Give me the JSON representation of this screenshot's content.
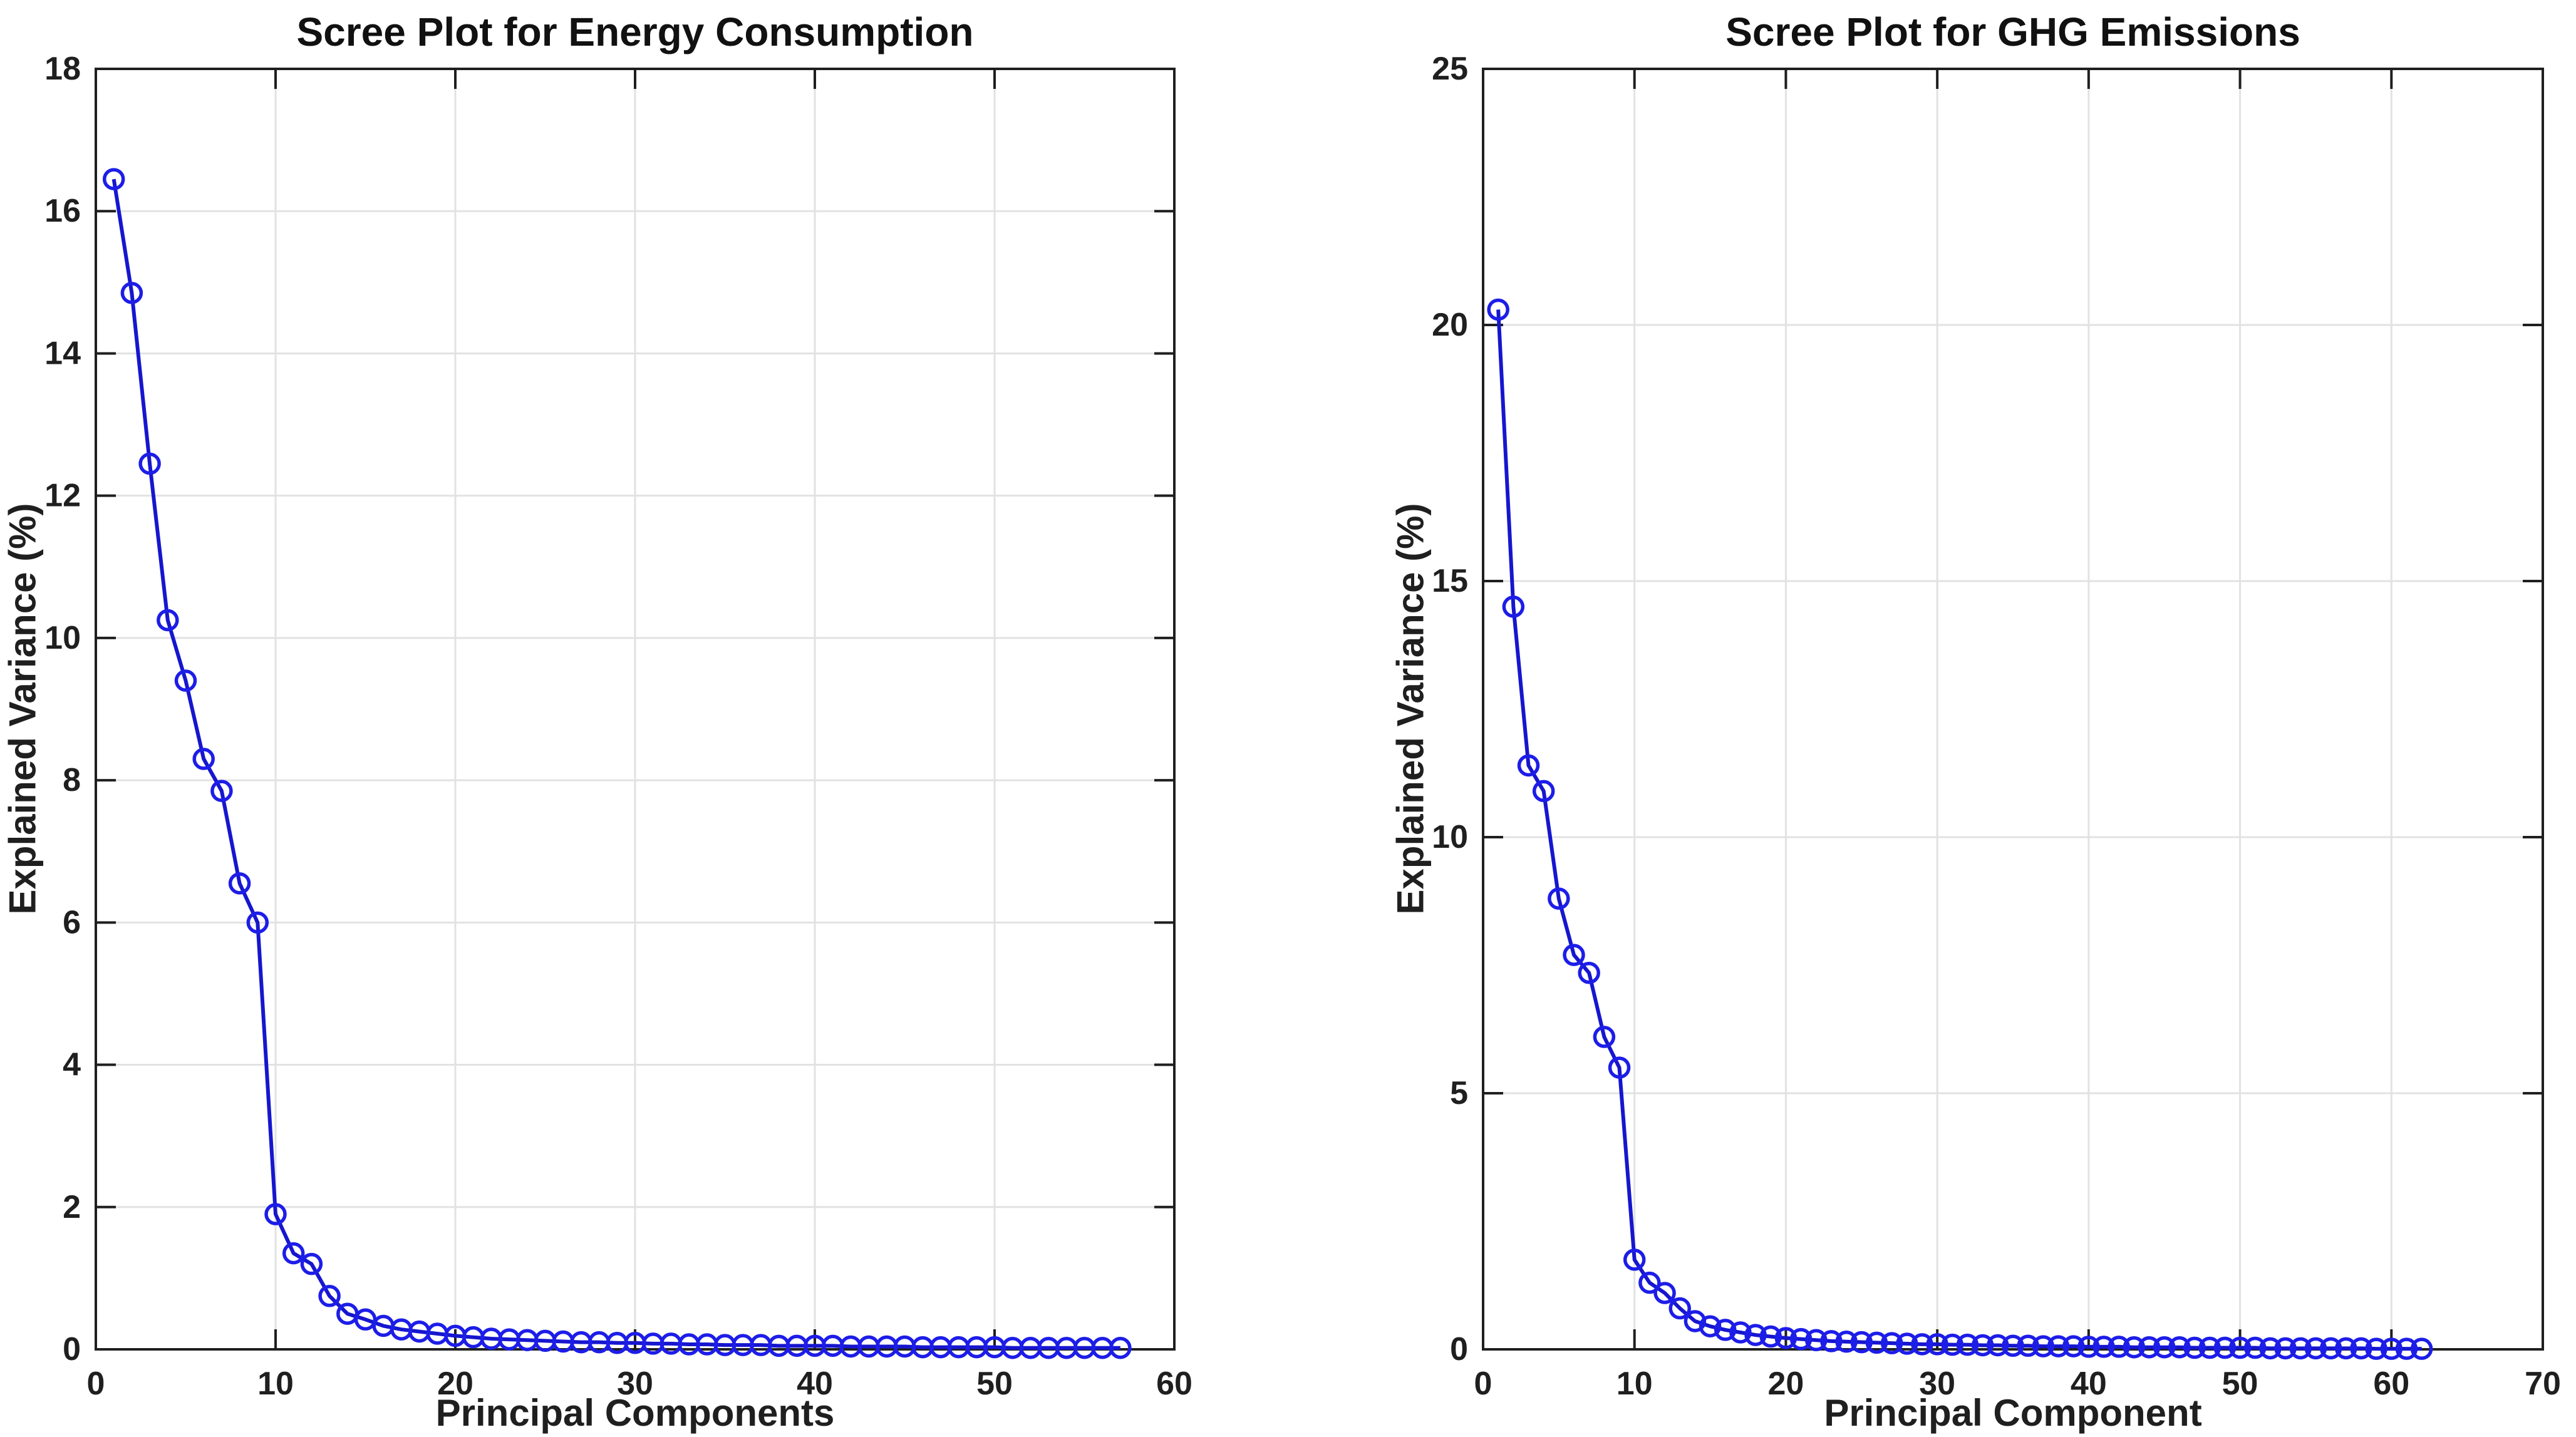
{
  "figure": {
    "background": "#ffffff",
    "axis_color": "#1f1f1f",
    "grid_color": "#e2e2e2",
    "series_line_color": "#1616cf",
    "series_marker_color": "#1d1de8"
  },
  "chart_data": [
    {
      "type": "line",
      "title": "Scree Plot for Energy Consumption",
      "xlabel": "Principal Components",
      "ylabel": "Explained Variance (%)",
      "xlim": [
        0,
        60
      ],
      "ylim": [
        0,
        18
      ],
      "xticks": [
        0,
        10,
        20,
        30,
        40,
        50,
        60
      ],
      "yticks": [
        0,
        2,
        4,
        6,
        8,
        10,
        12,
        14,
        16,
        18
      ],
      "grid": true,
      "legend": "none",
      "marker": "o",
      "line_color": "#1616cf",
      "marker_color": "#1d1de8",
      "x": [
        1,
        2,
        3,
        4,
        5,
        6,
        7,
        8,
        9,
        10,
        11,
        12,
        13,
        14,
        15,
        16,
        17,
        18,
        19,
        20,
        21,
        22,
        23,
        24,
        25,
        26,
        27,
        28,
        29,
        30,
        31,
        32,
        33,
        34,
        35,
        36,
        37,
        38,
        39,
        40,
        41,
        42,
        43,
        44,
        45,
        46,
        47,
        48,
        49,
        50,
        51,
        52,
        53,
        54,
        55,
        56,
        57
      ],
      "values": [
        16.45,
        14.85,
        12.45,
        10.25,
        9.4,
        8.3,
        7.85,
        6.55,
        6.0,
        1.9,
        1.35,
        1.2,
        0.75,
        0.5,
        0.42,
        0.33,
        0.28,
        0.25,
        0.22,
        0.19,
        0.17,
        0.15,
        0.14,
        0.13,
        0.12,
        0.11,
        0.1,
        0.1,
        0.09,
        0.09,
        0.08,
        0.08,
        0.07,
        0.07,
        0.06,
        0.06,
        0.06,
        0.05,
        0.05,
        0.05,
        0.05,
        0.04,
        0.04,
        0.04,
        0.04,
        0.03,
        0.03,
        0.03,
        0.03,
        0.03,
        0.02,
        0.02,
        0.02,
        0.02,
        0.02,
        0.02,
        0.02
      ]
    },
    {
      "type": "line",
      "title": "Scree Plot for GHG Emissions",
      "xlabel": "Principal Component",
      "ylabel": "Explained Variance (%)",
      "xlim": [
        0,
        70
      ],
      "ylim": [
        0,
        25
      ],
      "xticks": [
        0,
        10,
        20,
        30,
        40,
        50,
        60,
        70
      ],
      "yticks": [
        0,
        5,
        10,
        15,
        20,
        25
      ],
      "grid": true,
      "legend": "none",
      "marker": "o",
      "line_color": "#1616cf",
      "marker_color": "#1d1de8",
      "x": [
        1,
        2,
        3,
        4,
        5,
        6,
        7,
        8,
        9,
        10,
        11,
        12,
        13,
        14,
        15,
        16,
        17,
        18,
        19,
        20,
        21,
        22,
        23,
        24,
        25,
        26,
        27,
        28,
        29,
        30,
        31,
        32,
        33,
        34,
        35,
        36,
        37,
        38,
        39,
        40,
        41,
        42,
        43,
        44,
        45,
        46,
        47,
        48,
        49,
        50,
        51,
        52,
        53,
        54,
        55,
        56,
        57,
        58,
        59,
        60,
        61,
        62
      ],
      "values": [
        20.3,
        14.5,
        11.4,
        10.9,
        8.8,
        7.7,
        7.35,
        6.1,
        5.5,
        1.75,
        1.3,
        1.1,
        0.8,
        0.55,
        0.45,
        0.38,
        0.33,
        0.28,
        0.25,
        0.22,
        0.2,
        0.18,
        0.16,
        0.15,
        0.14,
        0.13,
        0.12,
        0.11,
        0.1,
        0.1,
        0.09,
        0.09,
        0.08,
        0.08,
        0.07,
        0.07,
        0.06,
        0.06,
        0.06,
        0.05,
        0.05,
        0.05,
        0.04,
        0.04,
        0.04,
        0.04,
        0.03,
        0.03,
        0.03,
        0.03,
        0.03,
        0.02,
        0.02,
        0.02,
        0.02,
        0.02,
        0.02,
        0.02,
        0.01,
        0.01,
        0.01,
        0.01
      ]
    }
  ]
}
